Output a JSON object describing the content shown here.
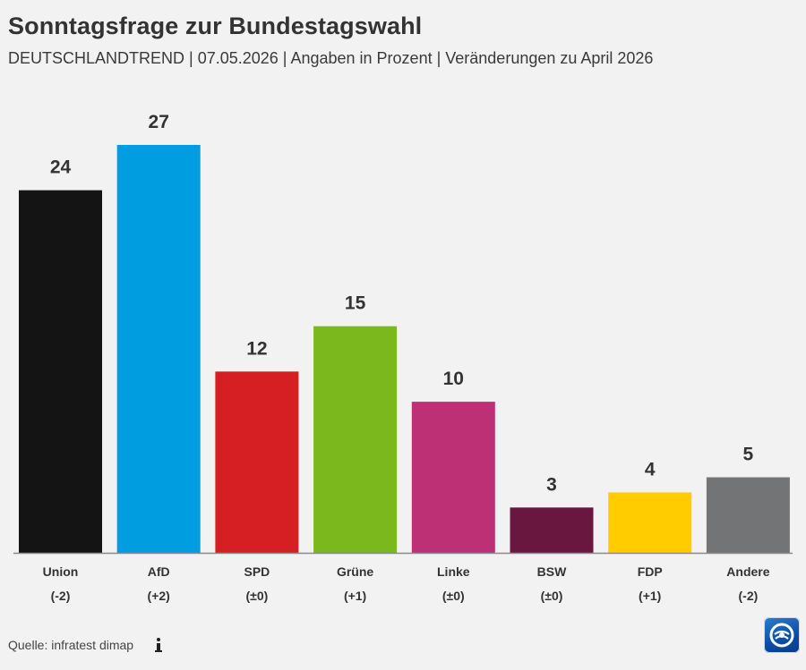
{
  "header": {
    "title": "Sonntagsfrage zur Bundestagswahl",
    "subtitle": "DEUTSCHLANDTREND | 07.05.2026 | Angaben in Prozent | Veränderungen zu April 2026"
  },
  "footer": {
    "source": "Quelle: infratest dimap",
    "info_icon": "info-icon",
    "logo_icon": "tagesschau-logo-icon"
  },
  "chart_data": {
    "type": "bar",
    "categories": [
      "Union",
      "AfD",
      "SPD",
      "Grüne",
      "Linke",
      "BSW",
      "FDP",
      "Andere"
    ],
    "values": [
      24,
      27,
      12,
      15,
      10,
      3,
      4,
      5
    ],
    "value_labels": [
      "24",
      "27",
      "12",
      "15",
      "10",
      "3",
      "4",
      "5"
    ],
    "changes": [
      "(-2)",
      "(+2)",
      "(±0)",
      "(+1)",
      "(±0)",
      "(±0)",
      "(+1)",
      "(-2)"
    ],
    "colors": [
      "#141414",
      "#009ee0",
      "#d61f22",
      "#7ab81e",
      "#be3075",
      "#6a1740",
      "#ffcc00",
      "#737475"
    ],
    "ylim": [
      0,
      27
    ],
    "grid": false,
    "legend": "none"
  }
}
